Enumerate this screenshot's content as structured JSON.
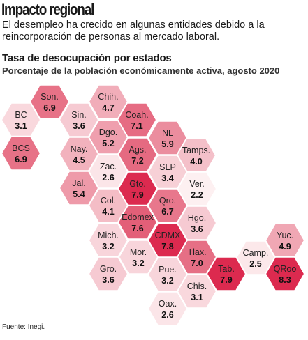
{
  "header": {
    "title": "Impacto regional",
    "intro": "El desempleo ha crecido en algunas entidades debido a la reincorporación de personas al mercado laboral."
  },
  "chart_data": {
    "type": "heatmap",
    "title": "Tasa de desocupación por estados",
    "subtitle": "Porcentaje de la población económicamente activa, agosto 2020",
    "states": [
      {
        "abbr": "Son.",
        "value": 6.9
      },
      {
        "abbr": "Chih.",
        "value": 4.7
      },
      {
        "abbr": "BC",
        "value": 3.1
      },
      {
        "abbr": "Sin.",
        "value": 3.6
      },
      {
        "abbr": "Coah.",
        "value": 7.1
      },
      {
        "abbr": "BCS",
        "value": 6.9
      },
      {
        "abbr": "Dgo.",
        "value": 5.2
      },
      {
        "abbr": "NL",
        "value": 5.9
      },
      {
        "abbr": "Nay.",
        "value": 4.5
      },
      {
        "abbr": "Ags.",
        "value": 7.2
      },
      {
        "abbr": "Tamps.",
        "value": 4.0
      },
      {
        "abbr": "Zac.",
        "value": 2.6
      },
      {
        "abbr": "SLP",
        "value": 3.4
      },
      {
        "abbr": "Jal.",
        "value": 5.4
      },
      {
        "abbr": "Gto.",
        "value": 7.9
      },
      {
        "abbr": "Ver.",
        "value": 2.2
      },
      {
        "abbr": "Col.",
        "value": 4.1
      },
      {
        "abbr": "Qro.",
        "value": 6.7
      },
      {
        "abbr": "Edomex",
        "value": 7.6
      },
      {
        "abbr": "Hgo.",
        "value": 3.6
      },
      {
        "abbr": "Mich.",
        "value": 3.2
      },
      {
        "abbr": "CDMX",
        "value": 7.8
      },
      {
        "abbr": "Yuc.",
        "value": 4.9
      },
      {
        "abbr": "Mor.",
        "value": 3.2
      },
      {
        "abbr": "Tlax.",
        "value": 7.0
      },
      {
        "abbr": "Camp.",
        "value": 2.5
      },
      {
        "abbr": "Gro.",
        "value": 3.6
      },
      {
        "abbr": "Pue.",
        "value": 3.2
      },
      {
        "abbr": "Tab.",
        "value": 7.9
      },
      {
        "abbr": "QRoo",
        "value": 8.3
      },
      {
        "abbr": "Chis.",
        "value": 3.1
      },
      {
        "abbr": "Oax.",
        "value": 2.6
      }
    ],
    "value_range": [
      2.2,
      8.3
    ],
    "highlighted": [
      "Gto.",
      "CDMX",
      "Tab.",
      "QRoo"
    ],
    "colors": {
      "low": "#fdf0f1",
      "high": "#e04c68",
      "highlight": "#dc2a4f",
      "stroke": "#ffffff"
    }
  },
  "footer": {
    "source": "Fuente: Inegi."
  }
}
